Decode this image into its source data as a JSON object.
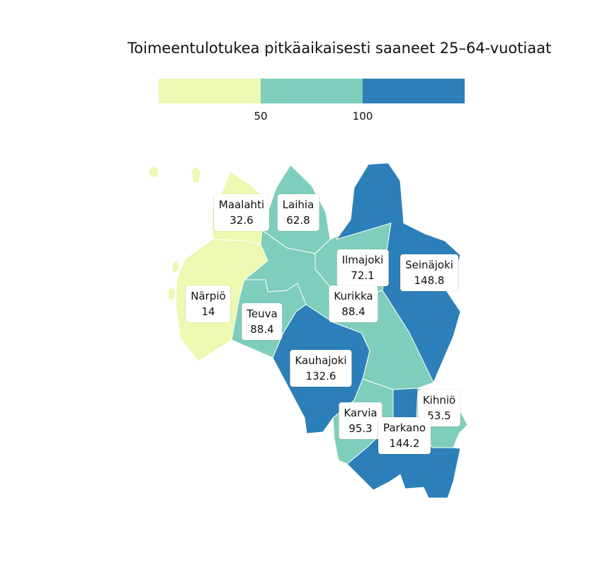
{
  "title": "Toimeentulotukea pitkäaikaisesti saaneet 25–64-vuotiaat",
  "legend": {
    "colors": [
      "#edf8b1",
      "#7fcdbb",
      "#2c7fb8"
    ],
    "breaks": [
      "50",
      "100"
    ]
  },
  "municipalities": [
    {
      "name": "Maalahti",
      "value": "32.6",
      "color": "#edf8b1"
    },
    {
      "name": "Laihia",
      "value": "62.8",
      "color": "#7fcdbb"
    },
    {
      "name": "Ilmajoki",
      "value": "72.1",
      "color": "#7fcdbb"
    },
    {
      "name": "Seinäjoki",
      "value": "148.8",
      "color": "#2c7fb8"
    },
    {
      "name": "Närpiö",
      "value": "14",
      "color": "#edf8b1"
    },
    {
      "name": "Teuva",
      "value": "88.4",
      "color": "#7fcdbb"
    },
    {
      "name": "Kurikka",
      "value": "88.4",
      "color": "#7fcdbb"
    },
    {
      "name": "Kauhajoki",
      "value": "132.6",
      "color": "#2c7fb8"
    },
    {
      "name": "Kihniö",
      "value": "53.5",
      "color": "#7fcdbb"
    },
    {
      "name": "Karvia",
      "value": "95.3",
      "color": "#7fcdbb"
    },
    {
      "name": "Parkano",
      "value": "144.2",
      "color": "#2c7fb8"
    }
  ]
}
